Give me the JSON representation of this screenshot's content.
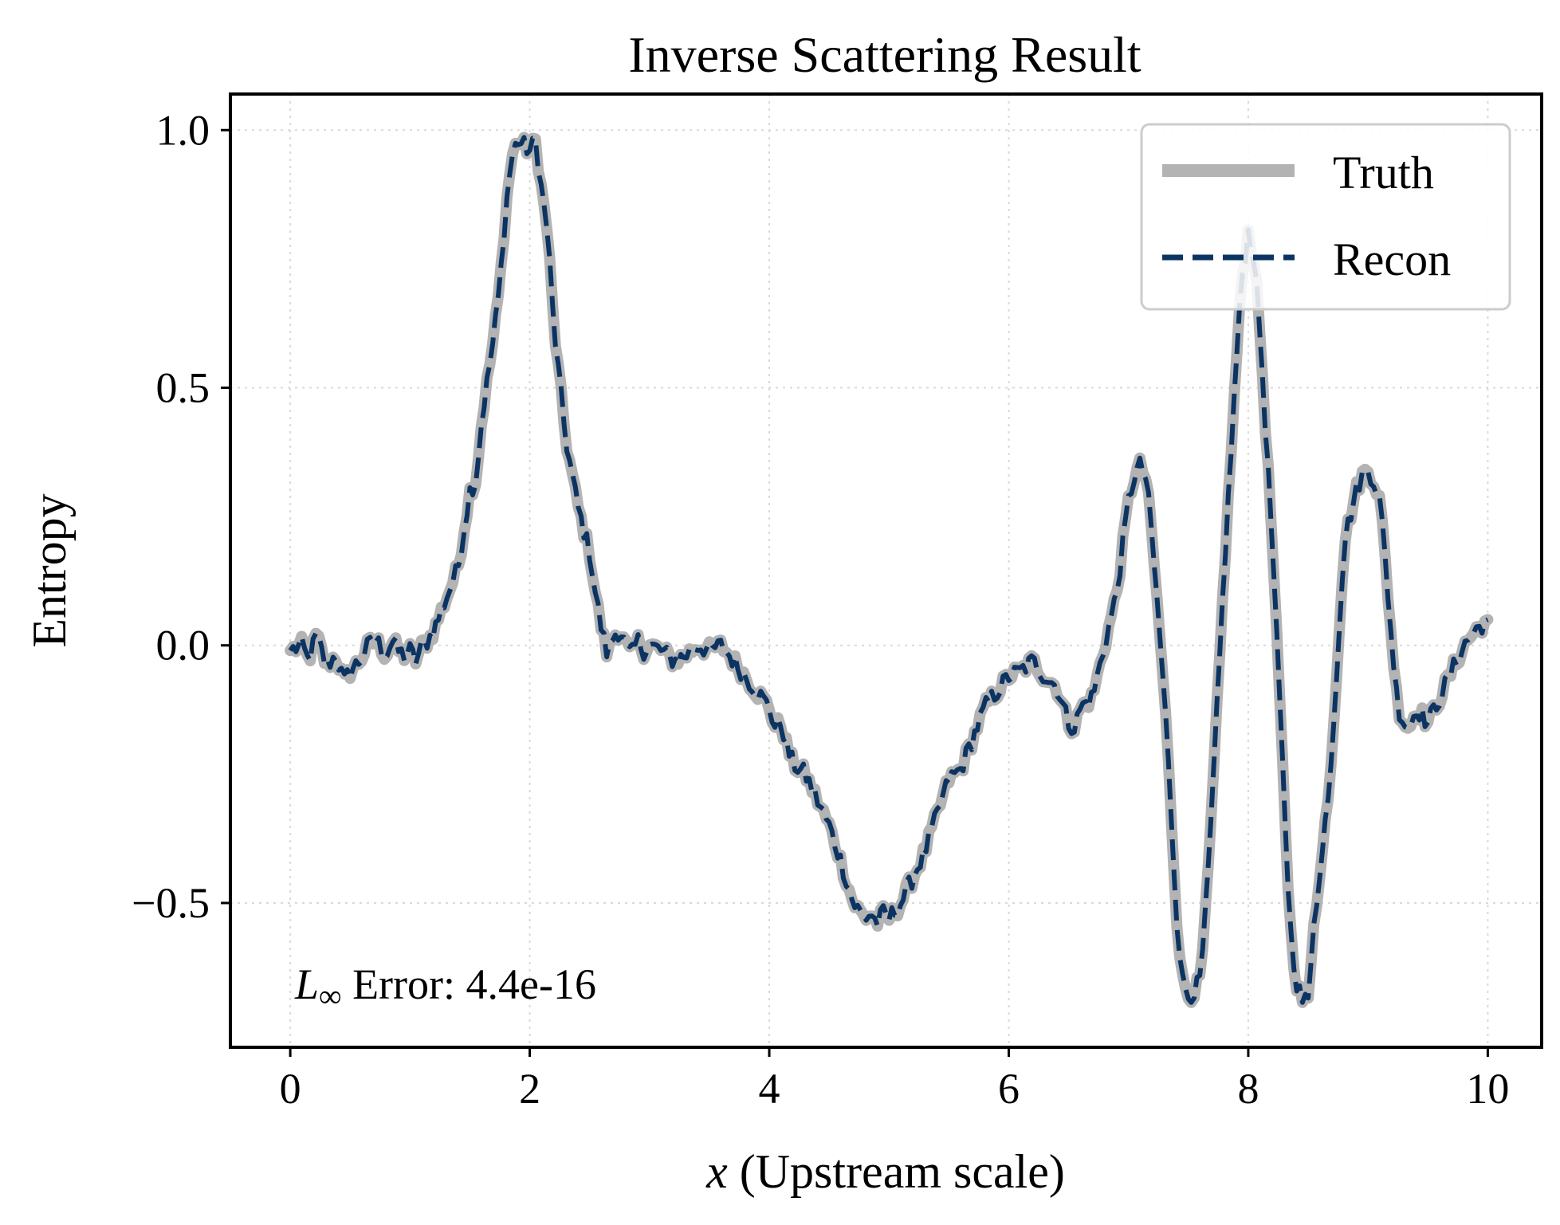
{
  "chart_data": {
    "type": "line",
    "title": "Inverse Scattering Result",
    "xlabel_var": "x",
    "xlabel_rest": " (Upstream scale)",
    "ylabel": "Entropy",
    "xlim": [
      -0.5,
      10.45
    ],
    "ylim": [
      -0.78,
      1.07
    ],
    "xticks": [
      0,
      2,
      4,
      6,
      8,
      10
    ],
    "xtick_labels": [
      "0",
      "2",
      "4",
      "6",
      "8",
      "10"
    ],
    "yticks": [
      -0.5,
      0.0,
      0.5,
      1.0
    ],
    "ytick_labels": [
      "−0.5",
      "0.0",
      "0.5",
      "1.0"
    ],
    "grid": true,
    "legend_position": "upper right",
    "annotation": {
      "var": "L",
      "subscript": "∞",
      "text": " Error: 4.4e-16"
    },
    "series": [
      {
        "name": "Truth",
        "style": "solid",
        "color": "#b3b3b3",
        "x": [
          0.0,
          0.1,
          0.15,
          0.22,
          0.3,
          0.38,
          0.45,
          0.5,
          0.58,
          0.65,
          0.72,
          0.8,
          0.85,
          0.9,
          0.95,
          1.0,
          1.05,
          1.1,
          1.15,
          1.2,
          1.25,
          1.3,
          1.4,
          1.5,
          1.55,
          1.6,
          1.65,
          1.7,
          1.75,
          1.8,
          1.85,
          1.9,
          1.95,
          2.0,
          2.05,
          2.1,
          2.15,
          2.2,
          2.3,
          2.4,
          2.5,
          2.55,
          2.6,
          2.65,
          2.7,
          2.75,
          2.8,
          2.85,
          2.9,
          2.95,
          3.0,
          3.1,
          3.2,
          3.3,
          3.4,
          3.5,
          3.6,
          3.7,
          3.8,
          3.9,
          4.0,
          4.05,
          4.1,
          4.15,
          4.2,
          4.3,
          4.4,
          4.5,
          4.6,
          4.7,
          4.8,
          4.85,
          4.9,
          4.95,
          5.0,
          5.1,
          5.2,
          5.3,
          5.4,
          5.5,
          5.6,
          5.7,
          5.8,
          5.9,
          6.0,
          6.1,
          6.2,
          6.3,
          6.4,
          6.5,
          6.55,
          6.6,
          6.7,
          6.8,
          6.9,
          7.0,
          7.05,
          7.1,
          7.15,
          7.2,
          7.3,
          7.35,
          7.4,
          7.45,
          7.5,
          7.55,
          7.6,
          7.65,
          7.7,
          7.8,
          7.9,
          7.95,
          8.0,
          8.05,
          8.1,
          8.2,
          8.3,
          8.35,
          8.4,
          8.45,
          8.5,
          8.55,
          8.6,
          8.7,
          8.8,
          8.9,
          8.95,
          9.0,
          9.05,
          9.1,
          9.15,
          9.2,
          9.25,
          9.3,
          9.35,
          9.4,
          9.5,
          9.6,
          9.7,
          9.8,
          9.9,
          10.0
        ],
        "y": [
          -0.01,
          0.0,
          -0.03,
          0.02,
          -0.04,
          -0.02,
          -0.07,
          -0.05,
          -0.03,
          0.0,
          0.01,
          -0.02,
          0.01,
          -0.01,
          -0.02,
          -0.01,
          -0.03,
          0.0,
          0.01,
          0.03,
          0.06,
          0.09,
          0.15,
          0.3,
          0.32,
          0.44,
          0.52,
          0.6,
          0.7,
          0.85,
          0.95,
          0.98,
          0.97,
          0.96,
          0.98,
          0.88,
          0.8,
          0.62,
          0.4,
          0.27,
          0.18,
          0.1,
          0.03,
          -0.02,
          0.02,
          0.03,
          0.0,
          -0.02,
          0.01,
          -0.01,
          0.0,
          -0.01,
          -0.03,
          -0.02,
          0.0,
          -0.01,
          0.0,
          -0.03,
          -0.06,
          -0.09,
          -0.12,
          -0.16,
          -0.15,
          -0.2,
          -0.23,
          -0.25,
          -0.3,
          -0.35,
          -0.42,
          -0.5,
          -0.53,
          -0.52,
          -0.54,
          -0.52,
          -0.53,
          -0.5,
          -0.45,
          -0.4,
          -0.33,
          -0.26,
          -0.24,
          -0.18,
          -0.12,
          -0.09,
          -0.06,
          -0.05,
          -0.03,
          -0.06,
          -0.08,
          -0.15,
          -0.16,
          -0.12,
          -0.1,
          0.0,
          0.1,
          0.28,
          0.33,
          0.35,
          0.32,
          0.2,
          -0.1,
          -0.3,
          -0.52,
          -0.65,
          -0.68,
          -0.67,
          -0.65,
          -0.5,
          -0.3,
          0.15,
          0.55,
          0.72,
          0.8,
          0.75,
          0.6,
          0.2,
          -0.3,
          -0.55,
          -0.65,
          -0.69,
          -0.69,
          -0.52,
          -0.45,
          -0.2,
          0.2,
          0.3,
          0.33,
          0.34,
          0.32,
          0.28,
          0.15,
          0.0,
          -0.12,
          -0.15,
          -0.16,
          -0.12,
          -0.15,
          -0.1,
          -0.05,
          0.0,
          0.03,
          0.05
        ],
        "noise_amp": 0.018
      },
      {
        "name": "Recon",
        "style": "dashed",
        "color": "#0b3463",
        "same_as": "Truth"
      }
    ]
  }
}
